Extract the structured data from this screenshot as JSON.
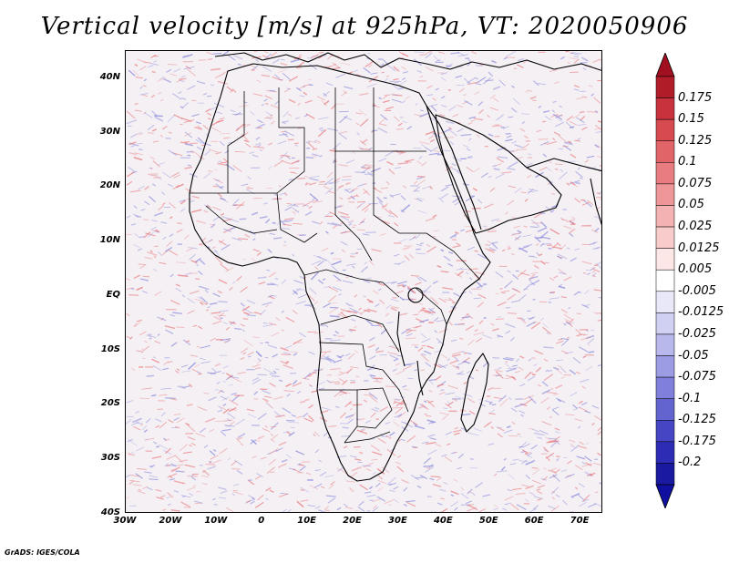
{
  "title": "Vertical velocity [m/s] at 925hPa, VT: 2020050906",
  "credit": "GrADS: IGES/COLA",
  "axes": {
    "lat_labels": [
      "40N",
      "30N",
      "20N",
      "10N",
      "EQ",
      "10S",
      "20S",
      "30S",
      "40S"
    ],
    "lat_values": [
      40,
      30,
      20,
      10,
      0,
      -10,
      -20,
      -30,
      -40
    ],
    "lon_labels": [
      "30W",
      "20W",
      "10W",
      "0",
      "10E",
      "20E",
      "30E",
      "40E",
      "50E",
      "60E",
      "70E"
    ],
    "lon_values": [
      -30,
      -20,
      -10,
      0,
      10,
      20,
      30,
      40,
      50,
      60,
      70
    ],
    "lon_range": [
      -30,
      75
    ],
    "lat_range": [
      -40,
      45
    ]
  },
  "colorbar": {
    "labels": [
      "0.175",
      "0.15",
      "0.125",
      "0.1",
      "0.075",
      "0.05",
      "0.025",
      "0.0125",
      "0.005",
      "-0.005",
      "-0.0125",
      "-0.025",
      "-0.05",
      "-0.075",
      "-0.1",
      "-0.125",
      "-0.175",
      "-0.2"
    ],
    "colors": [
      "#b01c28",
      "#c8323c",
      "#d64a50",
      "#e06468",
      "#e87c80",
      "#ee9698",
      "#f4b2b2",
      "#f9cccc",
      "#fce6e6",
      "#ffffff",
      "#e8e8f8",
      "#d0d0f2",
      "#b8b8ec",
      "#9c9ce4",
      "#8080dc",
      "#6464d0",
      "#4646c4",
      "#2c2cb4",
      "#1a1aa0"
    ],
    "top_arrow_color": "#a01020",
    "bottom_arrow_color": "#1010a0"
  },
  "colors": {
    "border": "#000000",
    "field_positive": "#e87c80",
    "field_negative": "#8c8cdc"
  }
}
